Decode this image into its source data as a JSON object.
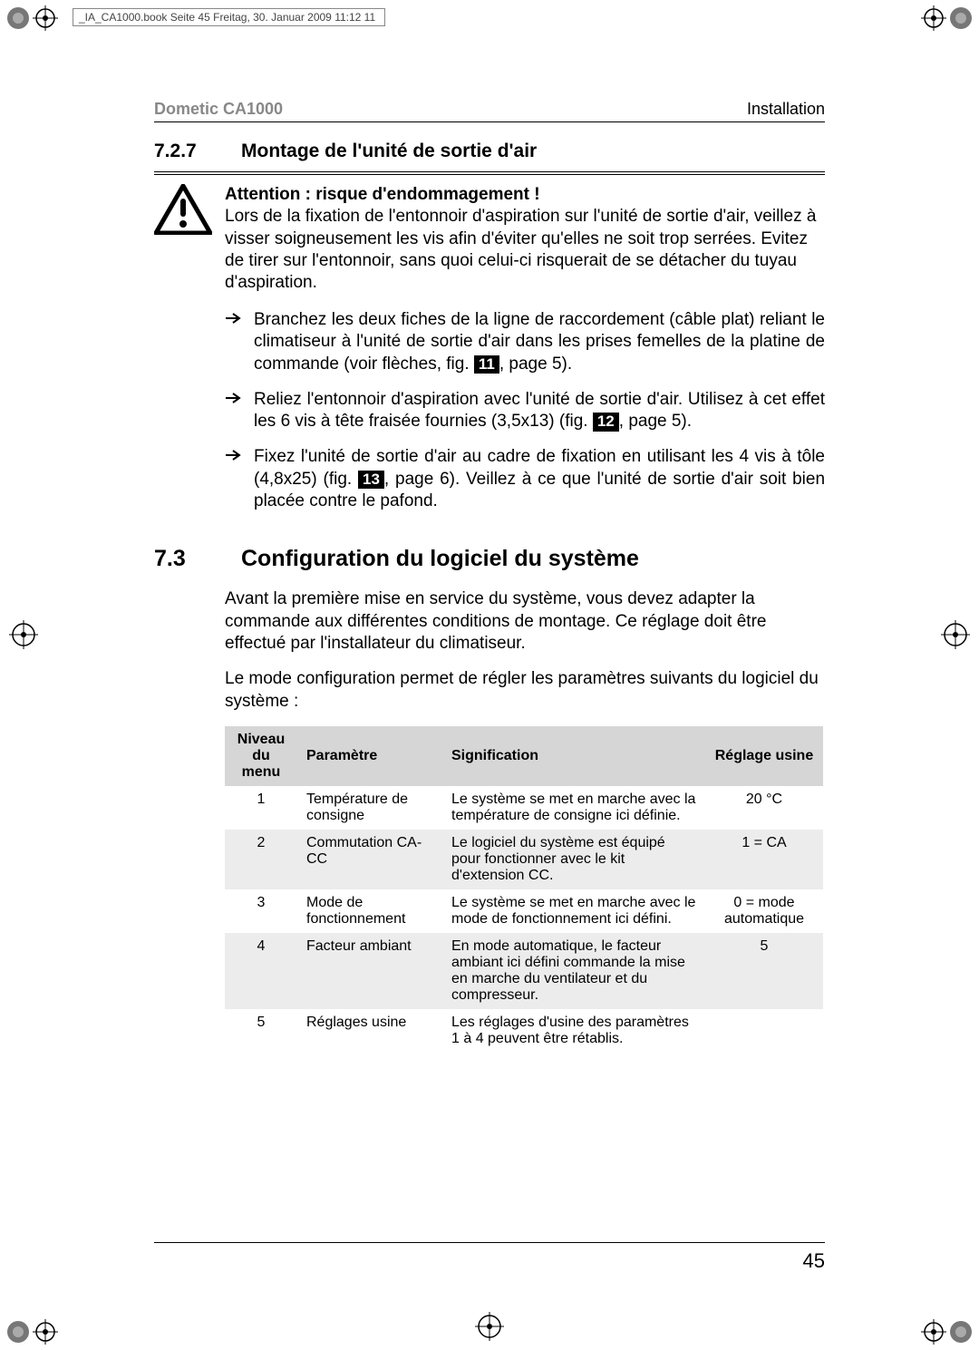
{
  "tab": "_IA_CA1000.book  Seite 45  Freitag, 30. Januar 2009  11:12 11",
  "runhead": {
    "left": "Dometic CA1000",
    "right": "Installation"
  },
  "sec727": {
    "num": "7.2.7",
    "title": "Montage de l'unité de sortie d'air",
    "warn_bold": "Attention : risque d'endommagement !",
    "warn_body": "Lors de la fixation de l'entonnoir d'aspiration sur l'unité de sortie d'air, veillez à visser soigneusement les vis afin d'éviter qu'elles ne soit trop serrées. Evitez de tirer sur l'entonnoir, sans quoi celui-ci risquerait de se détacher du tuyau d'aspiration.",
    "b1a": "Branchez les deux fiches de la ligne de raccordement (câble plat) reliant le climatiseur à l'unité de sortie d'air dans les prises femelles de la platine de commande (voir flèches, fig. ",
    "b1_ref": "11",
    "b1b": ", page 5).",
    "b2a": "Reliez l'entonnoir d'aspiration avec l'unité de sortie d'air. Utilisez à cet effet les 6 vis à tête fraisée fournies (3,5x13) (fig. ",
    "b2_ref": "12",
    "b2b": ", page 5).",
    "b3a": "Fixez l'unité de sortie d'air au cadre de fixation en utilisant les 4 vis à tôle (4,8x25) (fig. ",
    "b3_ref": "13",
    "b3b": ", page 6). Veillez à ce que l'unité de sortie d'air soit bien placée contre le pafond."
  },
  "sec73": {
    "num": "7.3",
    "title": "Configuration du logiciel du système",
    "p1": "Avant la première mise en service du système, vous devez adapter la commande aux différentes conditions de montage. Ce réglage doit être effectué par l'installateur du climatiseur.",
    "p2": "Le mode configuration permet de régler les paramètres suivants du logiciel du système :"
  },
  "table": {
    "columns": [
      "Niveau du menu",
      "Paramètre",
      "Signification",
      "Réglage usine"
    ],
    "col_widths": [
      "80px",
      "160px",
      "290px",
      "130px"
    ],
    "col_align": [
      "center",
      "left",
      "left",
      "center"
    ],
    "header_bg": "#d6d6d6",
    "alt_row_bg": "#ececec",
    "font_size": 16,
    "rows": [
      {
        "n": "1",
        "param": "Température de consigne",
        "sig": "Le système se met en marche avec la température de consigne ici définie.",
        "def": "20 °C",
        "shade": false
      },
      {
        "n": "2",
        "param": "Commutation CA-CC",
        "sig": "Le logiciel du système est équipé pour fonctionner avec le kit d'extension CC.",
        "def": "1 = CA",
        "shade": true
      },
      {
        "n": "3",
        "param": "Mode de fonctionnement",
        "sig": "Le système se met en marche avec le mode de fonctionnement ici défini.",
        "def": "0 = mode automatique",
        "shade": false
      },
      {
        "n": "4",
        "param": "Facteur ambiant",
        "sig": "En mode automatique, le facteur ambiant ici défini commande la mise en marche du ventilateur et du compresseur.",
        "def": "5",
        "shade": true
      },
      {
        "n": "5",
        "param": "Réglages usine",
        "sig": "Les réglages d'usine des paramètres 1 à 4 peuvent être rétablis.",
        "def": "",
        "shade": false
      }
    ]
  },
  "pagenum": "45",
  "colors": {
    "text": "#000000",
    "muted": "#888888",
    "page_bg": "#ffffff"
  }
}
